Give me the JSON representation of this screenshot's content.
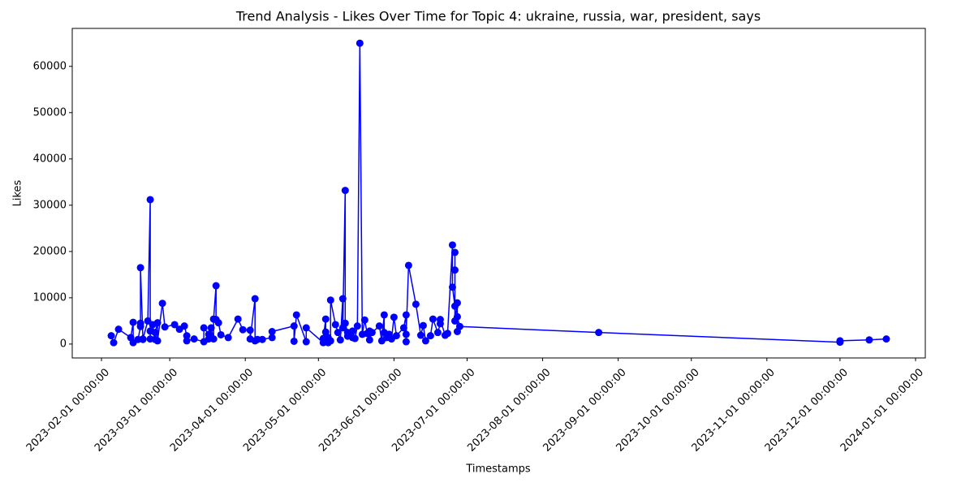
{
  "chart_data": {
    "type": "line",
    "title": "Trend Analysis - Likes Over Time for Topic 4: ukraine, russia, war, president, says",
    "x_label": "Timestamps",
    "y_label": "Likes",
    "color": "blue",
    "marker": "o",
    "xlim": [
      "2023-01-20",
      "2024-01-05"
    ],
    "ylim": [
      -3000,
      68200
    ],
    "xticks": [
      "2023-02-01 00:00:00",
      "2023-03-01 00:00:00",
      "2023-04-01 00:00:00",
      "2023-05-01 00:00:00",
      "2023-06-01 00:00:00",
      "2023-07-01 00:00:00",
      "2023-08-01 00:00:00",
      "2023-09-01 00:00:00",
      "2023-10-01 00:00:00",
      "2023-11-01 00:00:00",
      "2023-12-01 00:00:00",
      "2024-01-01 00:00:00"
    ],
    "yticks": [
      0,
      10000,
      20000,
      30000,
      40000,
      50000,
      60000
    ],
    "x": [
      "2023-02-05",
      "2023-02-06",
      "2023-02-08",
      "2023-02-13",
      "2023-02-14",
      "2023-02-14",
      "2023-02-16",
      "2023-02-17",
      "2023-02-17",
      "2023-02-17",
      "2023-02-18",
      "2023-02-18",
      "2023-02-20",
      "2023-02-21",
      "2023-02-21",
      "2023-02-21",
      "2023-02-22",
      "2023-02-23",
      "2023-02-23",
      "2023-02-24",
      "2023-02-24",
      "2023-02-26",
      "2023-02-27",
      "2023-03-03",
      "2023-03-05",
      "2023-03-07",
      "2023-03-08",
      "2023-03-08",
      "2023-03-11",
      "2023-03-15",
      "2023-03-15",
      "2023-03-17",
      "2023-03-17",
      "2023-03-18",
      "2023-03-19",
      "2023-03-19",
      "2023-03-20",
      "2023-03-20",
      "2023-03-21",
      "2023-03-22",
      "2023-03-25",
      "2023-03-29",
      "2023-03-31",
      "2023-04-03",
      "2023-04-03",
      "2023-04-05",
      "2023-04-05",
      "2023-04-06",
      "2023-04-08",
      "2023-04-12",
      "2023-04-12",
      "2023-04-21",
      "2023-04-21",
      "2023-04-22",
      "2023-04-26",
      "2023-04-26",
      "2023-05-03",
      "2023-05-03",
      "2023-05-04",
      "2023-05-04",
      "2023-05-05",
      "2023-05-05",
      "2023-05-06",
      "2023-05-06",
      "2023-05-08",
      "2023-05-09",
      "2023-05-10",
      "2023-05-11",
      "2023-05-11",
      "2023-05-12",
      "2023-05-12",
      "2023-05-13",
      "2023-05-13",
      "2023-05-15",
      "2023-05-15",
      "2023-05-16",
      "2023-05-17",
      "2023-05-18",
      "2023-05-19",
      "2023-05-20",
      "2023-05-21",
      "2023-05-22",
      "2023-05-22",
      "2023-05-23",
      "2023-05-26",
      "2023-05-27",
      "2023-05-28",
      "2023-05-28",
      "2023-05-29",
      "2023-05-30",
      "2023-05-31",
      "2023-06-01",
      "2023-06-02",
      "2023-06-05",
      "2023-06-06",
      "2023-06-06",
      "2023-06-06",
      "2023-06-07",
      "2023-06-10",
      "2023-06-12",
      "2023-06-13",
      "2023-06-14",
      "2023-06-16",
      "2023-06-17",
      "2023-06-19",
      "2023-06-20",
      "2023-06-20",
      "2023-06-22",
      "2023-06-23",
      "2023-06-25",
      "2023-06-25",
      "2023-06-26",
      "2023-06-26",
      "2023-06-26",
      "2023-06-26",
      "2023-06-27",
      "2023-06-27",
      "2023-06-27",
      "2023-06-28",
      "2023-08-24",
      "2023-12-01",
      "2023-12-01",
      "2023-12-13",
      "2023-12-20"
    ],
    "values": [
      1800,
      300,
      3200,
      1400,
      4700,
      300,
      1000,
      3800,
      4500,
      16500,
      1000,
      1100,
      5000,
      31200,
      1100,
      2800,
      4200,
      1000,
      2500,
      4600,
      700,
      8800,
      3700,
      4200,
      3200,
      3900,
      1800,
      700,
      1100,
      500,
      3500,
      2100,
      1100,
      3500,
      1100,
      5400,
      12600,
      5300,
      4600,
      2000,
      1400,
      5400,
      3100,
      3000,
      1100,
      9800,
      700,
      1000,
      1000,
      1400,
      2700,
      3900,
      600,
      6300,
      500,
      3500,
      300,
      1200,
      5400,
      2600,
      300,
      1400,
      700,
      9500,
      4200,
      2500,
      900,
      9800,
      3500,
      33200,
      4500,
      2500,
      1700,
      2800,
      1400,
      1200,
      3900,
      65000,
      2100,
      5200,
      2300,
      2800,
      900,
      2500,
      3900,
      700,
      6300,
      2500,
      1400,
      2100,
      1100,
      5800,
      1800,
      3500,
      6300,
      500,
      2100,
      17000,
      8600,
      1900,
      4000,
      700,
      1800,
      5400,
      2500,
      4400,
      5300,
      1900,
      2300,
      21400,
      12300,
      8200,
      19800,
      16000,
      5000,
      8900,
      2700,
      5900,
      3800,
      2500,
      400,
      700,
      900,
      1100
    ]
  }
}
